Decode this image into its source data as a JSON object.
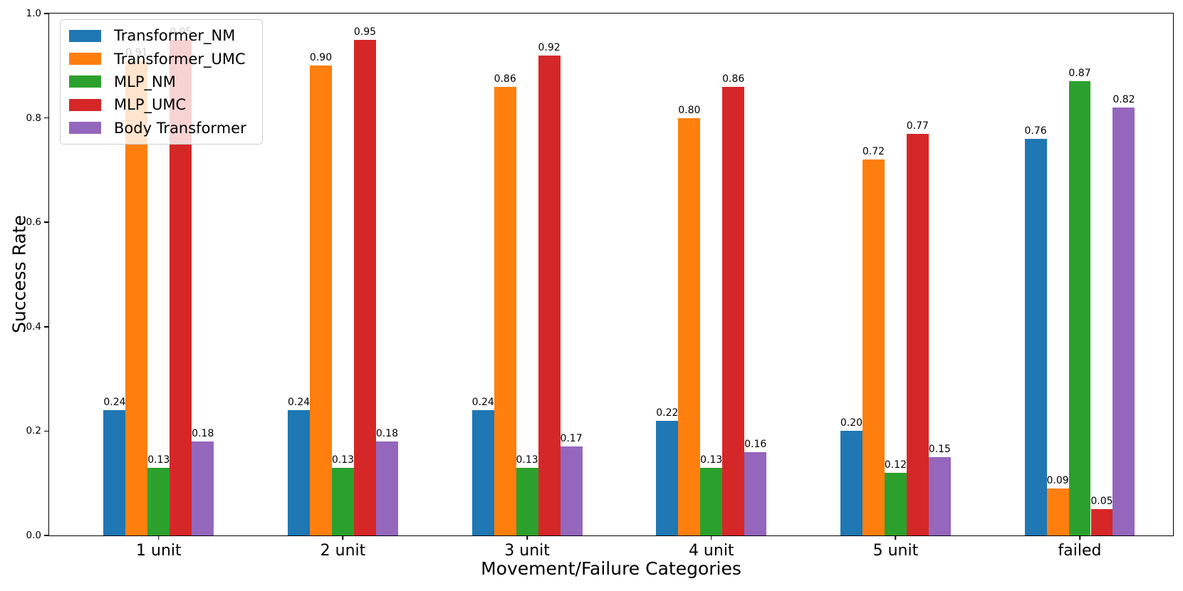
{
  "chart_data": {
    "type": "bar",
    "title": "",
    "xlabel": "Movement/Failure Categories",
    "ylabel": "Success Rate",
    "categories": [
      "1 unit",
      "2 unit",
      "3 unit",
      "4 unit",
      "5 unit",
      "failed"
    ],
    "series": [
      {
        "name": "Transformer_NM",
        "color": "#1f77b4",
        "values": [
          0.24,
          0.24,
          0.24,
          0.22,
          0.2,
          0.76
        ]
      },
      {
        "name": "Transformer_UMC",
        "color": "#ff7f0e",
        "values": [
          0.91,
          0.9,
          0.86,
          0.8,
          0.72,
          0.09
        ]
      },
      {
        "name": "MLP_NM",
        "color": "#2ca02c",
        "values": [
          0.13,
          0.13,
          0.13,
          0.13,
          0.12,
          0.87
        ]
      },
      {
        "name": "MLP_UMC",
        "color": "#d62728",
        "values": [
          0.95,
          0.95,
          0.92,
          0.86,
          0.77,
          0.05
        ]
      },
      {
        "name": "Body Transformer",
        "color": "#9467bd",
        "values": [
          0.18,
          0.18,
          0.17,
          0.16,
          0.15,
          0.82
        ]
      }
    ],
    "ylim": [
      0.0,
      1.0
    ],
    "yticks": [
      "0.0",
      "0.2",
      "0.4",
      "0.6",
      "0.8",
      "1.0"
    ],
    "bar_value_labels": true,
    "grid": false,
    "legend_position": "upper left",
    "colors": {
      "axis": "#000000",
      "legend_border": "#cccccc",
      "legend_background": "rgba(255,255,255,0.8)"
    }
  }
}
